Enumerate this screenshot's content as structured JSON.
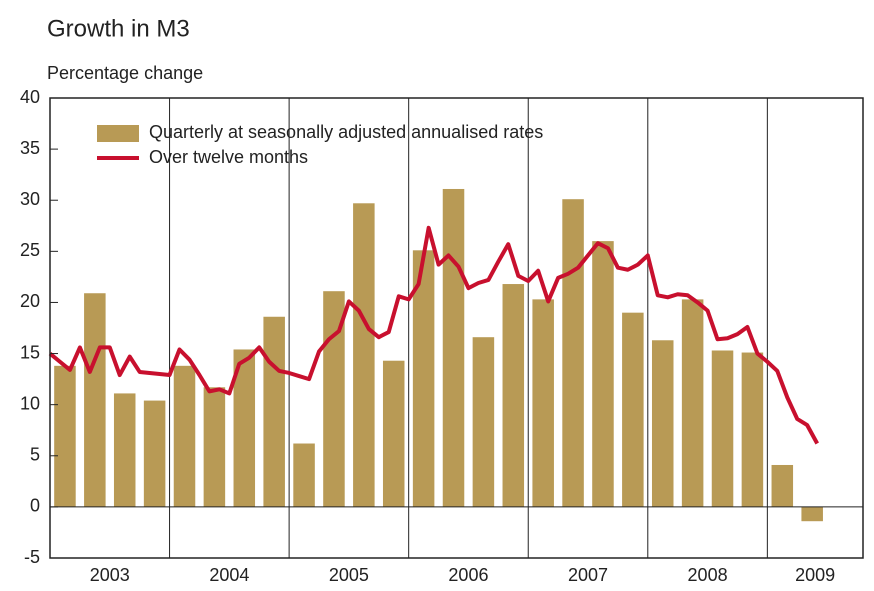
{
  "chart_data": {
    "type": "combo",
    "title": "Growth in M3",
    "y_label": "Percentage change",
    "xlim": [
      2003,
      2009.8
    ],
    "ylim": [
      -5,
      40
    ],
    "yticks": [
      -5,
      0,
      5,
      10,
      15,
      20,
      25,
      30,
      35,
      40
    ],
    "xticks": [
      {
        "value": 2003.5,
        "label": "2003"
      },
      {
        "value": 2004.5,
        "label": "2004"
      },
      {
        "value": 2005.5,
        "label": "2005"
      },
      {
        "value": 2006.5,
        "label": "2006"
      },
      {
        "value": 2007.5,
        "label": "2007"
      },
      {
        "value": 2008.5,
        "label": "2008"
      },
      {
        "value": 2009.4,
        "label": "2009"
      }
    ],
    "x_gridlines": [
      2004,
      2005,
      2006,
      2007,
      2008,
      2009
    ],
    "legend": "upper left",
    "series": [
      {
        "name": "Quarterly at seasonally adjusted annualised rates",
        "type": "bar",
        "color": "#b89a55",
        "x": [
          2003.125,
          2003.375,
          2003.625,
          2003.875,
          2004.125,
          2004.375,
          2004.625,
          2004.875,
          2005.125,
          2005.375,
          2005.625,
          2005.875,
          2006.125,
          2006.375,
          2006.625,
          2006.875,
          2007.125,
          2007.375,
          2007.625,
          2007.875,
          2008.125,
          2008.375,
          2008.625,
          2008.875,
          2009.125,
          2009.375
        ],
        "values": [
          13.8,
          20.9,
          11.1,
          10.4,
          13.8,
          11.7,
          15.4,
          18.6,
          6.2,
          21.1,
          29.7,
          14.3,
          25.1,
          31.1,
          16.6,
          21.8,
          20.3,
          30.1,
          26.0,
          19.0,
          16.3,
          20.3,
          15.3,
          15.1,
          4.1,
          -1.4
        ]
      },
      {
        "name": "Over twelve months",
        "type": "line",
        "color": "#c8102e",
        "x": [
          2003,
          2003.083,
          2003.167,
          2003.25,
          2003.333,
          2003.417,
          2003.5,
          2003.583,
          2003.667,
          2003.75,
          2003.833,
          2003.917,
          2004,
          2004.083,
          2004.167,
          2004.25,
          2004.333,
          2004.417,
          2004.5,
          2004.583,
          2004.667,
          2004.75,
          2004.833,
          2004.917,
          2005,
          2005.083,
          2005.167,
          2005.25,
          2005.333,
          2005.417,
          2005.5,
          2005.583,
          2005.667,
          2005.75,
          2005.833,
          2005.917,
          2006,
          2006.083,
          2006.167,
          2006.25,
          2006.333,
          2006.417,
          2006.5,
          2006.583,
          2006.667,
          2006.75,
          2006.833,
          2006.917,
          2007,
          2007.083,
          2007.167,
          2007.25,
          2007.333,
          2007.417,
          2007.5,
          2007.583,
          2007.667,
          2007.75,
          2007.833,
          2007.917,
          2008,
          2008.083,
          2008.167,
          2008.25,
          2008.333,
          2008.417,
          2008.5,
          2008.583,
          2008.667,
          2008.75,
          2008.833,
          2008.917,
          2009,
          2009.083,
          2009.167,
          2009.25,
          2009.333,
          2009.417
        ],
        "values": [
          15.0,
          14.2,
          13.4,
          15.6,
          13.2,
          15.6,
          15.6,
          12.9,
          14.7,
          13.2,
          13.1,
          13.0,
          12.9,
          15.4,
          14.4,
          12.9,
          11.3,
          11.5,
          11.1,
          14.0,
          14.6,
          15.6,
          14.2,
          13.3,
          13.1,
          12.8,
          12.5,
          15.2,
          16.4,
          17.2,
          20.1,
          19.2,
          17.4,
          16.6,
          17.1,
          20.6,
          20.3,
          21.8,
          27.3,
          23.7,
          24.6,
          23.5,
          21.4,
          21.9,
          22.2,
          24.0,
          25.7,
          22.6,
          22.1,
          23.1,
          20.1,
          22.4,
          22.8,
          23.4,
          24.6,
          25.8,
          25.3,
          23.4,
          23.2,
          23.7,
          24.6,
          20.7,
          20.5,
          20.8,
          20.7,
          20.0,
          19.2,
          16.4,
          16.5,
          16.9,
          17.6,
          15.0,
          14.2,
          13.3,
          10.7,
          8.6,
          8.0,
          6.2
        ]
      }
    ]
  }
}
